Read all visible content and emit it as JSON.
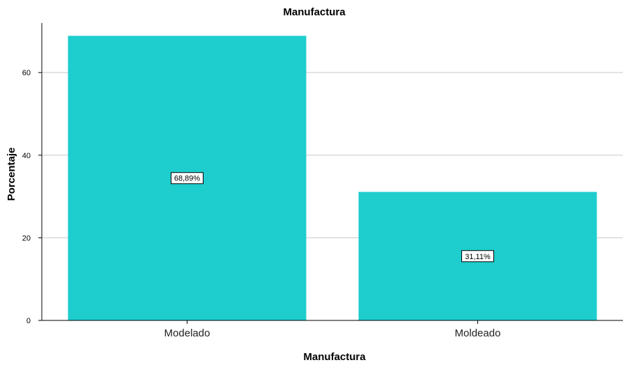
{
  "chart_data": {
    "type": "bar",
    "title": "Manufactura",
    "xlabel": "Manufactura",
    "ylabel": "Porcentaje",
    "categories": [
      "Modelado",
      "Moldeado"
    ],
    "values": [
      68.89,
      31.11
    ],
    "data_labels": [
      "68,89%",
      "31,11%"
    ],
    "ylim": [
      0,
      72
    ],
    "yticks": [
      0,
      20,
      40,
      60
    ],
    "ytick_labels": [
      "0",
      "20",
      "40",
      "60"
    ],
    "grid": true,
    "bar_color": "#1ecdce",
    "grid_color": "#c8c8c8"
  }
}
